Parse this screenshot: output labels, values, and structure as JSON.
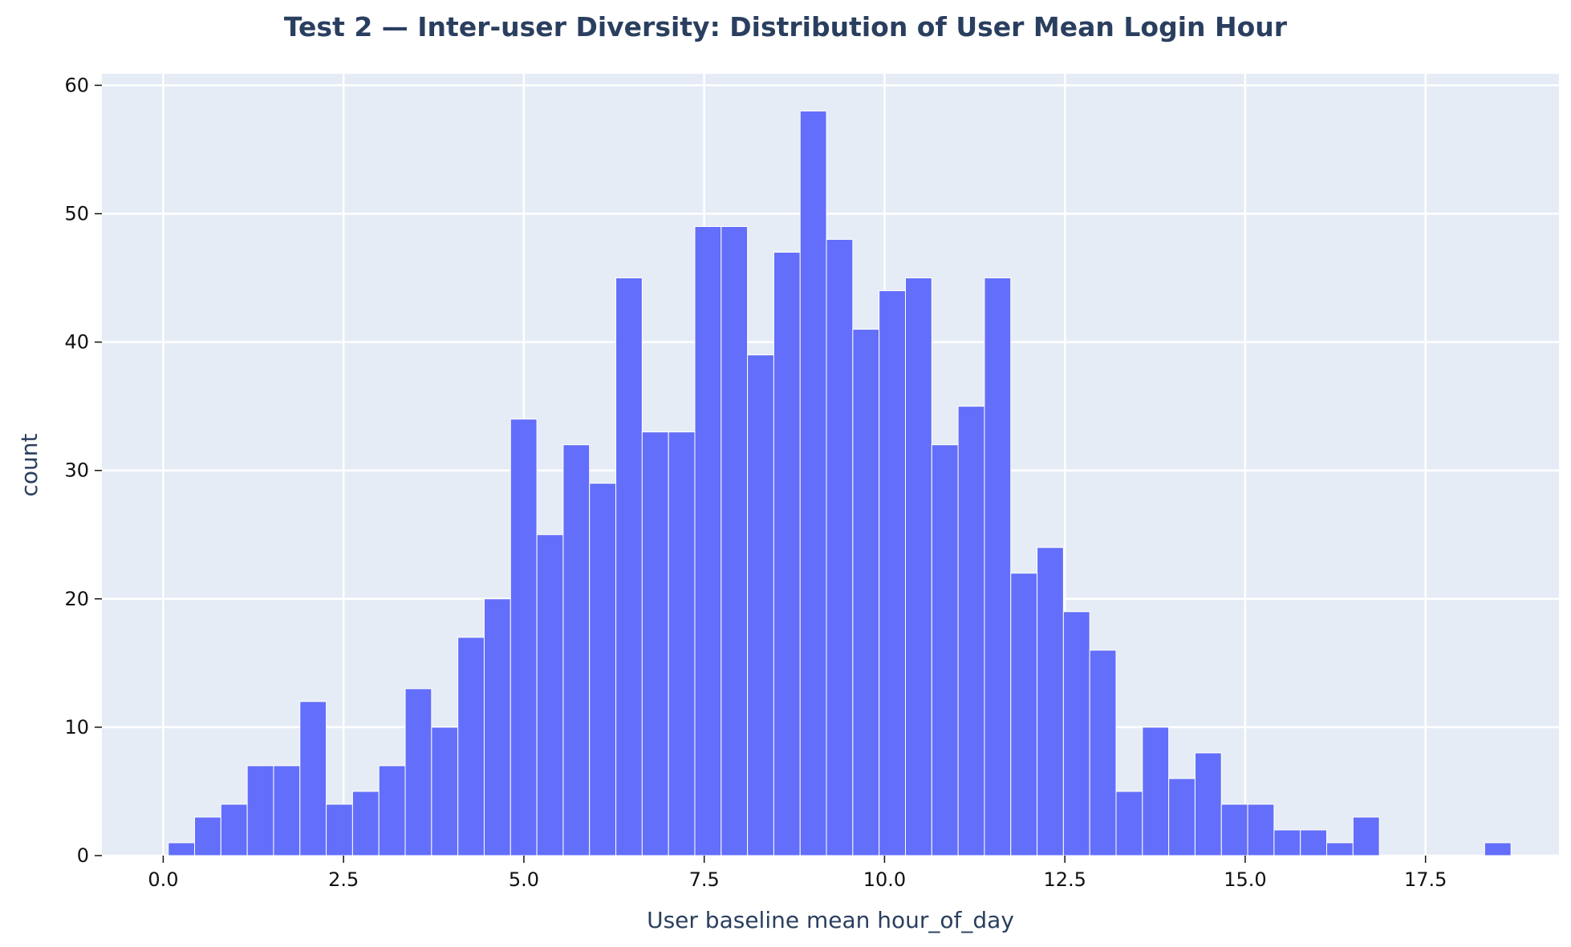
{
  "chart_data": {
    "type": "bar",
    "title": "Test 2 — Inter-user Diversity: Distribution of User Mean Login Hour",
    "xlabel": "User baseline mean hour_of_day",
    "ylabel": "count",
    "xlim": [
      -0.85,
      19.35
    ],
    "ylim": [
      0,
      60.9
    ],
    "xticks": [
      0.0,
      2.5,
      5.0,
      7.5,
      10.0,
      12.5,
      15.0,
      17.5
    ],
    "xtick_labels": [
      "0.0",
      "2.5",
      "5.0",
      "7.5",
      "10.0",
      "12.5",
      "15.0",
      "17.5"
    ],
    "yticks": [
      0,
      10,
      20,
      30,
      40,
      50,
      60
    ],
    "ytick_labels": [
      "0",
      "10",
      "20",
      "30",
      "40",
      "50",
      "60"
    ],
    "bin_start": 0.07,
    "bin_width": 0.365,
    "values": [
      1,
      3,
      4,
      7,
      7,
      12,
      4,
      5,
      7,
      13,
      10,
      17,
      20,
      34,
      25,
      32,
      29,
      45,
      33,
      33,
      49,
      49,
      39,
      47,
      58,
      48,
      41,
      44,
      45,
      32,
      35,
      45,
      22,
      24,
      19,
      16,
      5,
      10,
      6,
      8,
      4,
      4,
      2,
      2,
      1,
      3,
      0,
      0,
      0,
      0,
      1
    ],
    "bar_color": "#636efa",
    "background_color": "#e5ecf6",
    "grid": true,
    "legend": "none"
  }
}
